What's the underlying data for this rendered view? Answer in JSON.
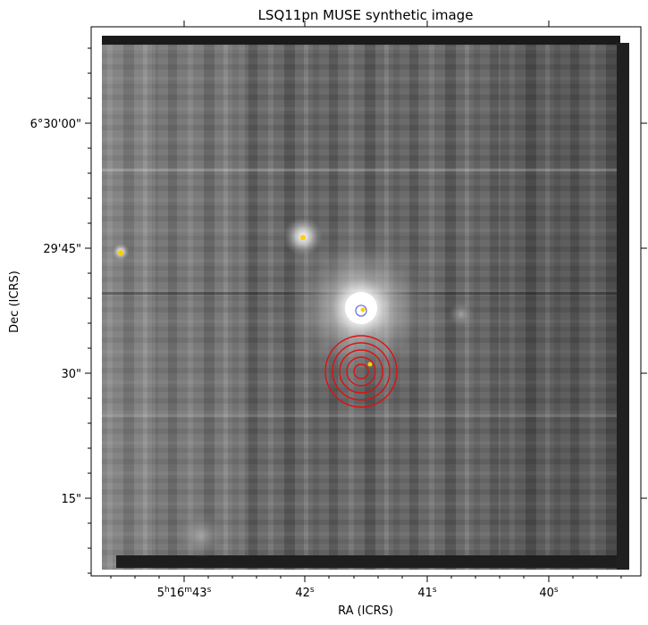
{
  "figure": {
    "title": "LSQ11pn MUSE synthetic image",
    "xlabel": "RA (ICRS)",
    "ylabel": "Dec (ICRS)",
    "colormap": "gray"
  },
  "axes": {
    "x_ticks": [
      {
        "h": "5",
        "m": "16",
        "s": "43",
        "label_text": "5h16m43s"
      },
      {
        "s": "42",
        "label_text": "42s"
      },
      {
        "s": "41",
        "label_text": "41s"
      },
      {
        "s": "40",
        "label_text": "40s"
      }
    ],
    "y_ticks": [
      {
        "label": "6°30'00\""
      },
      {
        "label": "29'45\""
      },
      {
        "label": "30\""
      },
      {
        "label": "15\""
      }
    ]
  },
  "markers": {
    "target_circles": {
      "count": 5,
      "color": "#e01010"
    },
    "reference_circle": {
      "color": "#7070e0"
    },
    "sources": [
      {
        "name": "source-far-left",
        "color": "#ffd000"
      },
      {
        "name": "source-upper",
        "color": "#ffd000"
      },
      {
        "name": "source-bright-center",
        "color": "#ffd000"
      },
      {
        "name": "source-target",
        "color": "#ffd000"
      }
    ]
  }
}
